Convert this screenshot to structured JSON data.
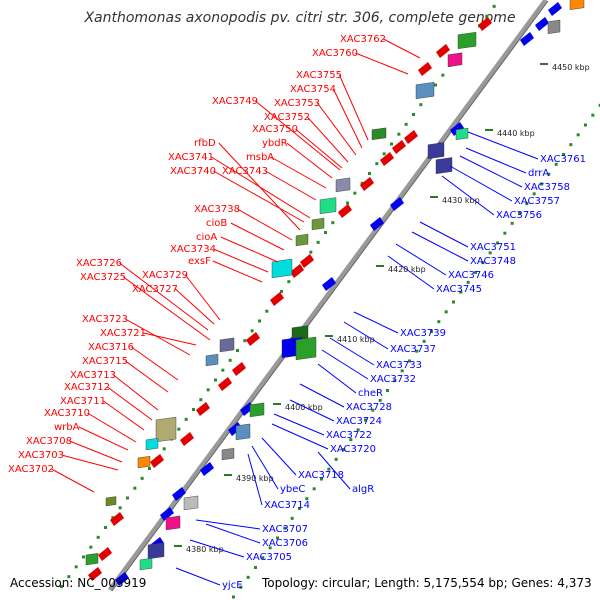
{
  "title": "Xanthomonas axonopodis pv. citri str. 306, complete genome",
  "footer": {
    "accession": "Accession: NC_003919",
    "summary": "Topology: circular; Length: 5,175,554 bp; Genes: 4,373"
  },
  "colors": {
    "reverse_label": "#ff0000",
    "forward_label": "#0000ff",
    "axis": "#888888"
  },
  "ticks": [
    "4450 kbp",
    "4440 kbp",
    "4430 kbp",
    "4420 kbp",
    "4410 kbp",
    "4400 kbp",
    "4390 kbp",
    "4380 kbp"
  ],
  "labels_left": [
    "XAC3762",
    "XAC3760",
    "XAC3755",
    "XAC3754",
    "XAC3749",
    "XAC3753",
    "XAC3752",
    "XAC3750",
    "rfbD",
    "ybdR",
    "XAC3741",
    "msbA",
    "XAC3740",
    "XAC3743",
    "XAC3738",
    "cioB",
    "cioA",
    "XAC3734",
    "exsF",
    "XAC3726",
    "XAC3725",
    "XAC3729",
    "XAC3727",
    "XAC3723",
    "XAC3721",
    "XAC3716",
    "XAC3715",
    "XAC3713",
    "XAC3712",
    "XAC3711",
    "XAC3710",
    "wrbA",
    "XAC3708",
    "XAC3703",
    "XAC3702"
  ],
  "labels_right": [
    "XAC3761",
    "drrA",
    "XAC3758",
    "XAC3757",
    "XAC3756",
    "XAC3751",
    "XAC3748",
    "XAC3746",
    "XAC3745",
    "XAC3739",
    "XAC3737",
    "XAC3733",
    "XAC3732",
    "cheR",
    "XAC3728",
    "XAC3724",
    "XAC3722",
    "XAC3720",
    "XAC3718",
    "algR",
    "ybeC",
    "XAC3714",
    "XAC3707",
    "XAC3706",
    "XAC3705",
    "yjcE"
  ]
}
